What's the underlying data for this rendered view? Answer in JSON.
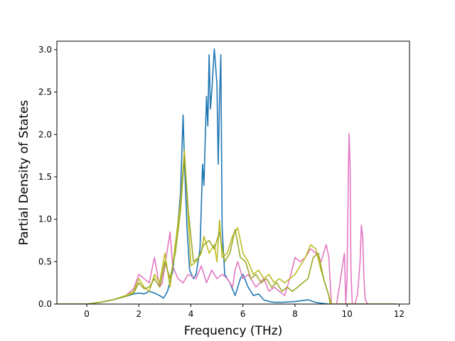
{
  "chart_data": {
    "type": "line",
    "title": "",
    "xlabel": "Frequency (THz)",
    "ylabel": "Partial Density of States",
    "xlim": [
      -1.15,
      12.4
    ],
    "ylim": [
      0,
      3.1
    ],
    "xticks": [
      0,
      2,
      4,
      6,
      8,
      10,
      12
    ],
    "yticks": [
      0.0,
      0.5,
      1.0,
      1.5,
      2.0,
      2.5,
      3.0
    ],
    "xtick_labels": [
      "0",
      "2",
      "4",
      "6",
      "8",
      "10",
      "12"
    ],
    "ytick_labels": [
      "0.0",
      "0.5",
      "1.0",
      "1.5",
      "2.0",
      "2.5",
      "3.0"
    ],
    "grid": false,
    "legend": false,
    "series": [
      {
        "color": "#1f77b4",
        "x": [
          -1.1,
          0.0,
          0.5,
          1.0,
          1.5,
          1.8,
          2.0,
          2.2,
          2.4,
          2.6,
          2.8,
          2.95,
          3.1,
          3.3,
          3.5,
          3.6,
          3.7,
          3.75,
          3.85,
          3.95,
          4.1,
          4.2,
          4.35,
          4.45,
          4.5,
          4.6,
          4.65,
          4.7,
          4.75,
          4.8,
          4.9,
          5.0,
          5.05,
          5.1,
          5.15,
          5.2,
          5.3,
          5.5,
          5.7,
          5.9,
          6.0,
          6.2,
          6.4,
          6.6,
          6.8,
          7.0,
          7.2,
          7.5,
          8.0,
          8.5,
          8.6,
          8.8,
          9.0,
          9.3,
          9.5,
          11.9
        ],
        "y": [
          0,
          0,
          0.02,
          0.05,
          0.09,
          0.12,
          0.13,
          0.12,
          0.15,
          0.13,
          0.1,
          0.07,
          0.15,
          0.38,
          0.95,
          1.3,
          2.23,
          1.7,
          0.9,
          0.4,
          0.3,
          0.35,
          0.65,
          1.65,
          1.4,
          2.45,
          2.1,
          2.94,
          2.3,
          2.5,
          3.01,
          2.6,
          1.65,
          2.4,
          2.94,
          0.9,
          0.35,
          0.25,
          0.1,
          0.3,
          0.35,
          0.2,
          0.1,
          0.12,
          0.05,
          0.03,
          0.02,
          0.02,
          0.03,
          0.05,
          0.04,
          0.02,
          0.01,
          0.0,
          0,
          0
        ]
      },
      {
        "color": "#e377c2",
        "x": [
          -1.1,
          0.0,
          0.5,
          1.0,
          1.5,
          1.8,
          2.0,
          2.2,
          2.4,
          2.5,
          2.6,
          2.8,
          2.9,
          3.0,
          3.1,
          3.2,
          3.3,
          3.5,
          3.7,
          3.9,
          4.2,
          4.4,
          4.6,
          4.8,
          5.0,
          5.2,
          5.4,
          5.6,
          5.7,
          5.8,
          6.0,
          6.2,
          6.5,
          6.8,
          7.0,
          7.2,
          7.4,
          7.6,
          7.8,
          8.0,
          8.2,
          8.4,
          8.6,
          8.8,
          9.0,
          9.2,
          9.3,
          9.4,
          9.6,
          9.9,
          9.95,
          10.0,
          10.05,
          10.08,
          10.12,
          10.15,
          10.2,
          10.3,
          10.4,
          10.5,
          10.55,
          10.6,
          10.65,
          10.7,
          10.8,
          11.9
        ],
        "y": [
          0,
          0,
          0.02,
          0.05,
          0.1,
          0.18,
          0.35,
          0.3,
          0.25,
          0.4,
          0.55,
          0.2,
          0.25,
          0.45,
          0.65,
          0.85,
          0.45,
          0.3,
          0.25,
          0.35,
          0.3,
          0.45,
          0.25,
          0.4,
          0.3,
          0.35,
          0.3,
          0.2,
          0.4,
          0.5,
          0.3,
          0.35,
          0.2,
          0.3,
          0.15,
          0.2,
          0.15,
          0.1,
          0.3,
          0.55,
          0.5,
          0.55,
          0.65,
          0.6,
          0.5,
          0.7,
          0.55,
          0.0,
          0.0,
          0.6,
          0.0,
          0.3,
          1.5,
          2.01,
          1.6,
          0.4,
          0.0,
          0.0,
          0.1,
          0.5,
          0.93,
          0.8,
          0.3,
          0.05,
          0.0,
          0
        ]
      },
      {
        "color": "#bcbd22",
        "x": [
          -1.1,
          0.0,
          0.5,
          1.0,
          1.5,
          1.8,
          2.0,
          2.2,
          2.4,
          2.6,
          2.8,
          3.0,
          3.2,
          3.4,
          3.6,
          3.75,
          3.9,
          4.0,
          4.2,
          4.4,
          4.5,
          4.7,
          4.9,
          5.0,
          5.1,
          5.2,
          5.4,
          5.6,
          5.8,
          6.0,
          6.2,
          6.4,
          6.6,
          6.8,
          7.0,
          7.2,
          7.4,
          7.6,
          7.8,
          8.0,
          8.2,
          8.4,
          8.6,
          8.8,
          9.0,
          9.2,
          9.35,
          9.4,
          11.9
        ],
        "y": [
          0,
          0,
          0.02,
          0.05,
          0.1,
          0.15,
          0.3,
          0.2,
          0.15,
          0.35,
          0.25,
          0.6,
          0.2,
          0.7,
          1.2,
          1.81,
          1.0,
          0.45,
          0.5,
          0.6,
          0.8,
          0.6,
          0.7,
          0.5,
          0.99,
          0.55,
          0.6,
          0.8,
          0.9,
          0.6,
          0.5,
          0.35,
          0.4,
          0.3,
          0.35,
          0.25,
          0.3,
          0.25,
          0.3,
          0.35,
          0.45,
          0.55,
          0.7,
          0.65,
          0.4,
          0.2,
          0.05,
          0.0,
          0
        ]
      },
      {
        "color": "#9aa82a",
        "x": [
          -1.1,
          0.0,
          0.5,
          1.0,
          1.5,
          1.8,
          2.0,
          2.2,
          2.4,
          2.6,
          2.8,
          3.0,
          3.2,
          3.4,
          3.6,
          3.75,
          3.9,
          4.1,
          4.3,
          4.5,
          4.7,
          4.9,
          5.1,
          5.3,
          5.5,
          5.7,
          5.9,
          6.1,
          6.3,
          6.5,
          6.7,
          6.9,
          7.1,
          7.3,
          7.5,
          7.7,
          7.9,
          8.1,
          8.3,
          8.5,
          8.7,
          8.9,
          9.1,
          9.3,
          9.35,
          11.9
        ],
        "y": [
          0,
          0,
          0.02,
          0.05,
          0.09,
          0.13,
          0.25,
          0.18,
          0.2,
          0.3,
          0.2,
          0.5,
          0.3,
          0.6,
          1.1,
          1.75,
          1.1,
          0.5,
          0.55,
          0.7,
          0.75,
          0.65,
          0.85,
          0.5,
          0.6,
          0.88,
          0.55,
          0.5,
          0.3,
          0.35,
          0.25,
          0.3,
          0.2,
          0.25,
          0.15,
          0.2,
          0.15,
          0.2,
          0.25,
          0.3,
          0.55,
          0.6,
          0.3,
          0.1,
          0.0,
          0
        ]
      }
    ]
  }
}
